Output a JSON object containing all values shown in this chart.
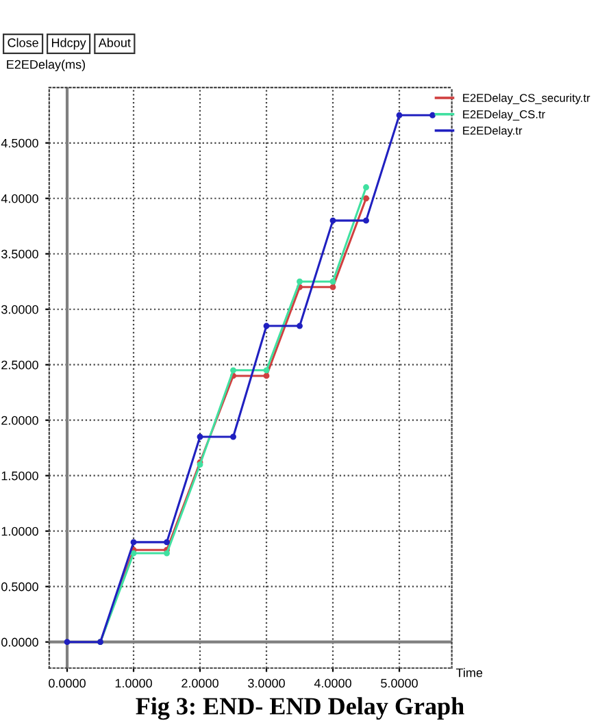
{
  "chart_data": {
    "type": "line",
    "title": "Fig 3: END- END Delay Graph",
    "xlabel": "Time",
    "ylabel": "E2EDelay(ms)",
    "annotations": [
      "Close",
      "Hdcpy",
      "About"
    ],
    "xlim": [
      -0.27,
      5.79
    ],
    "ylim": [
      -0.235,
      5.0
    ],
    "xticks": [
      {
        "value": 0,
        "label": "0.0000"
      },
      {
        "value": 1,
        "label": "1.0000"
      },
      {
        "value": 2,
        "label": "2.0000"
      },
      {
        "value": 3,
        "label": "3.0000"
      },
      {
        "value": 4,
        "label": "4.0000"
      },
      {
        "value": 5,
        "label": "5.0000"
      }
    ],
    "yticks": [
      {
        "value": 0,
        "label": "0.0000"
      },
      {
        "value": 0.5,
        "label": "0.5000"
      },
      {
        "value": 1,
        "label": "1.0000"
      },
      {
        "value": 1.5,
        "label": "1.5000"
      },
      {
        "value": 2,
        "label": "2.0000"
      },
      {
        "value": 2.5,
        "label": "2.5000"
      },
      {
        "value": 3,
        "label": "3.0000"
      },
      {
        "value": 3.5,
        "label": "3.5000"
      },
      {
        "value": 4,
        "label": "4.0000"
      },
      {
        "value": 4.5,
        "label": "4.5000"
      }
    ],
    "grid": true,
    "legend": "top right",
    "marker": "circle",
    "line_style": "solid",
    "series": [
      {
        "name": "E2EDelay_CS_security.tr",
        "color": "#d04040",
        "x": [
          0.5,
          1.0,
          1.5,
          2.0,
          2.5,
          3.0,
          3.5,
          4.0,
          4.5
        ],
        "values": [
          0,
          0.83,
          0.83,
          1.62,
          2.4,
          2.4,
          3.2,
          3.2,
          4.0
        ]
      },
      {
        "name": "E2EDelay_CS.tr",
        "color": "#40e0a0",
        "x": [
          0.5,
          1.0,
          1.5,
          2.0,
          2.5,
          3.0,
          3.5,
          4.0,
          4.5
        ],
        "values": [
          0,
          0.8,
          0.8,
          1.6,
          2.45,
          2.45,
          3.25,
          3.25,
          4.1
        ]
      },
      {
        "name": "E2EDelay.tr",
        "color": "#2020c0",
        "x": [
          0,
          0.5,
          1.0,
          1.5,
          2.0,
          2.5,
          3.0,
          3.5,
          4.0,
          4.5,
          5.0,
          5.5
        ],
        "values": [
          0,
          0,
          0.9,
          0.9,
          1.85,
          1.85,
          2.85,
          2.85,
          3.8,
          3.8,
          4.75,
          4.75
        ]
      }
    ]
  }
}
